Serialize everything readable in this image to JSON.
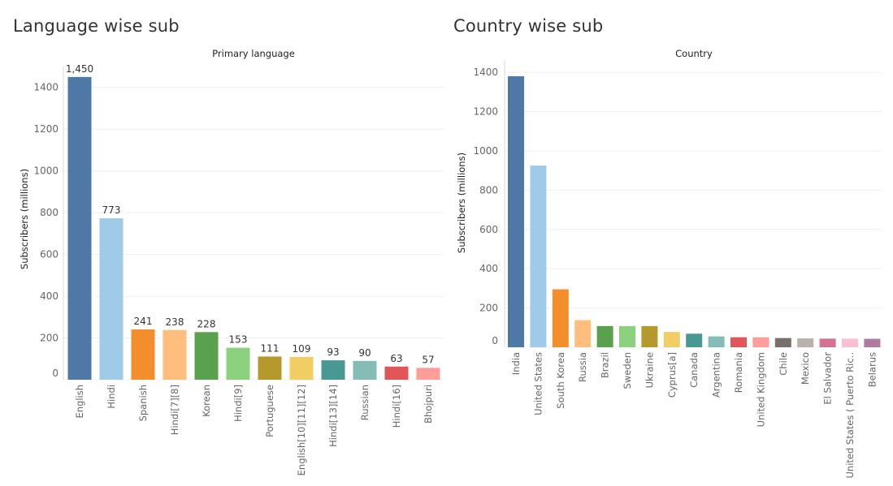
{
  "chart_data": [
    {
      "type": "bar",
      "title": "Language wise sub",
      "header": "Primary language",
      "ylabel": "Subscribers (millions)",
      "xlabel": "",
      "ylim": [
        0,
        1500
      ],
      "yticks": [
        0,
        200,
        400,
        600,
        800,
        1000,
        1200,
        1400
      ],
      "grid": true,
      "data_labels": true,
      "categories": [
        "English",
        "Hindi",
        "Spanish",
        "Hindi[7][8]",
        "Korean",
        "Hindi[9]",
        "Portuguese",
        "English[10][11][12]",
        "Hindi[13][14]",
        "Russian",
        "Hindi[16]",
        "Bhojpuri"
      ],
      "values": [
        1450,
        773,
        241,
        238,
        228,
        153,
        111,
        109,
        93,
        90,
        63,
        57
      ],
      "value_labels": [
        "1,450",
        "773",
        "241",
        "238",
        "228",
        "153",
        "111",
        "109",
        "93",
        "90",
        "63",
        "57"
      ],
      "colors": [
        "#4e79a7",
        "#a0cbe8",
        "#f28e2b",
        "#ffbe7d",
        "#59a14f",
        "#8cd17d",
        "#b6992d",
        "#f1ce63",
        "#499894",
        "#86bcb6",
        "#e15759",
        "#ff9d9a"
      ]
    },
    {
      "type": "bar",
      "title": "Country wise sub",
      "header": "Country",
      "ylabel": "Subscribers (millions)",
      "xlabel": "",
      "ylim": [
        0,
        1450
      ],
      "yticks": [
        0,
        200,
        400,
        600,
        800,
        1000,
        1200,
        1400
      ],
      "grid": true,
      "data_labels": false,
      "categories": [
        "India",
        "United States",
        "South Korea",
        "Russia",
        "Brazil",
        "Sweden",
        "Ukraine",
        "Cyprus[a]",
        "Canada",
        "Argentina",
        "Romania",
        "United Kingdom",
        "Chile",
        "Mexico",
        "El Salvador",
        "United States ( Puerto Ric..",
        "Belarus"
      ],
      "values": [
        1380,
        925,
        295,
        138,
        108,
        108,
        108,
        78,
        69,
        55,
        51,
        51,
        47,
        45,
        44,
        44,
        43
      ],
      "colors": [
        "#4e79a7",
        "#a0cbe8",
        "#f28e2b",
        "#ffbe7d",
        "#59a14f",
        "#8cd17d",
        "#b6992d",
        "#f1ce63",
        "#499894",
        "#86bcb6",
        "#e15759",
        "#ff9d9a",
        "#79706e",
        "#bab0ac",
        "#d37295",
        "#fabfd2",
        "#b07aa1"
      ]
    }
  ]
}
